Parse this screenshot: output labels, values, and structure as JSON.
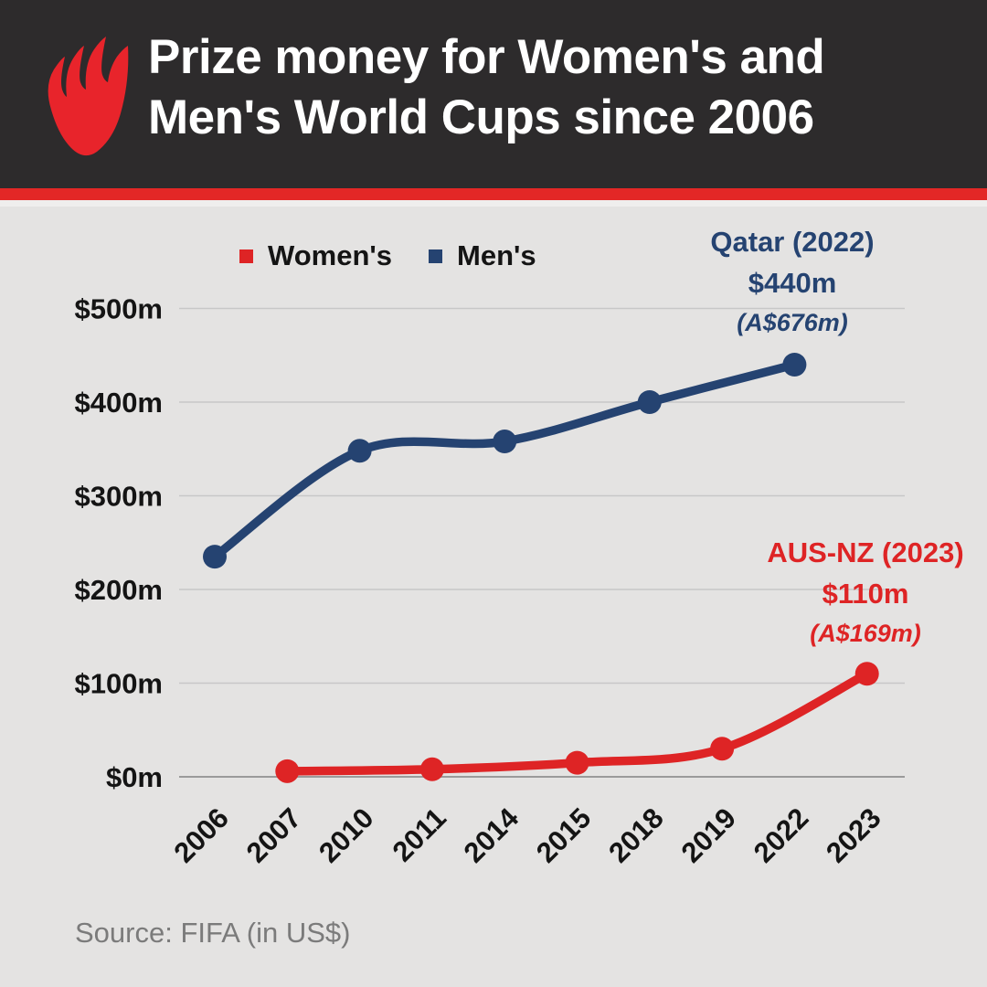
{
  "header": {
    "title_line1": "Prize money for Women's and",
    "title_line2": "Men's World Cups since 2006",
    "logo": "sbs-logo",
    "background": "#2d2b2c",
    "accent_color": "#e32726"
  },
  "legend": [
    {
      "label": "Women's",
      "color": "#de2425"
    },
    {
      "label": "Men's",
      "color": "#254371"
    }
  ],
  "annotations": {
    "mens": {
      "line1": "Qatar (2022)",
      "line2": "$440m",
      "line3": "(A$676m)",
      "color": "#254371"
    },
    "womens": {
      "line1": "AUS-NZ (2023)",
      "line2": "$110m",
      "line3": "(A$169m)",
      "color": "#de2425"
    }
  },
  "source": "Source: FIFA (in US$)",
  "chart_data": {
    "type": "line",
    "categories": [
      "2006",
      "2007",
      "2010",
      "2011",
      "2014",
      "2015",
      "2018",
      "2019",
      "2022",
      "2023"
    ],
    "y_ticks": [
      "$0m",
      "$100m",
      "$200m",
      "$300m",
      "$400m",
      "$500m"
    ],
    "ylim": [
      0,
      500
    ],
    "grid": true,
    "legend_position": "top",
    "series": [
      {
        "name": "Men's",
        "color": "#254371",
        "points": [
          {
            "x": "2006",
            "y": 235
          },
          {
            "x": "2010",
            "y": 348
          },
          {
            "x": "2014",
            "y": 358
          },
          {
            "x": "2018",
            "y": 400
          },
          {
            "x": "2022",
            "y": 440
          }
        ]
      },
      {
        "name": "Women's",
        "color": "#de2425",
        "points": [
          {
            "x": "2007",
            "y": 6
          },
          {
            "x": "2011",
            "y": 8
          },
          {
            "x": "2015",
            "y": 15
          },
          {
            "x": "2019",
            "y": 30
          },
          {
            "x": "2023",
            "y": 110
          }
        ]
      }
    ]
  }
}
